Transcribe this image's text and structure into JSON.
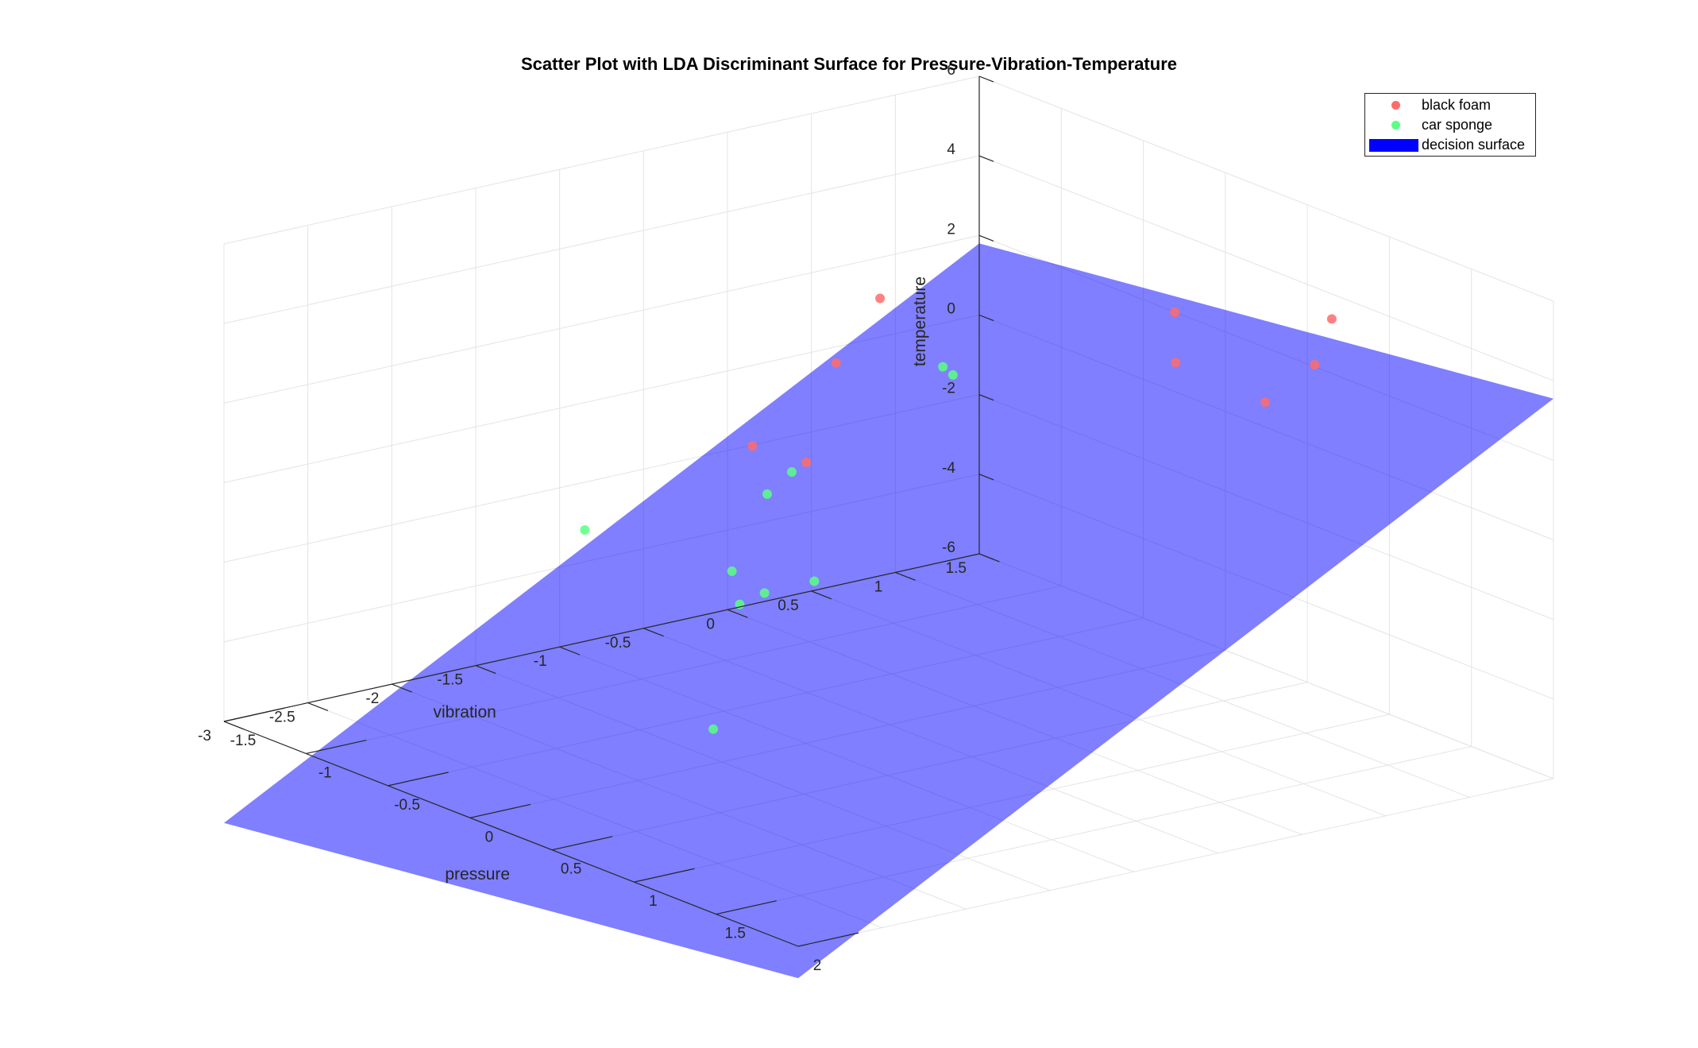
{
  "chart_data": {
    "type": "scatter",
    "title": "Scatter Plot with LDA Discriminant Surface for Pressure-Vibration-Temperature",
    "xlabel": "pressure",
    "ylabel": "vibration",
    "zlabel": "temperature",
    "xlim": [
      -1.5,
      2
    ],
    "ylim": [
      -3,
      1.5
    ],
    "zlim": [
      -6,
      6
    ],
    "xticks": [
      "-1.5",
      "-1",
      "-0.5",
      "0",
      "0.5",
      "1",
      "1.5",
      "2"
    ],
    "yticks": [
      "-3",
      "-2.5",
      "-2",
      "-1.5",
      "-1",
      "-0.5",
      "0",
      "0.5",
      "1",
      "1.5"
    ],
    "zticks": [
      "-6",
      "-4",
      "-2",
      "0",
      "2",
      "4",
      "6"
    ],
    "grid": true,
    "legend_position": "top-right",
    "series": [
      {
        "name": "black foam",
        "color": "#ff6b6b",
        "points": [
          {
            "x": -1.45,
            "y": 0.86,
            "z": 1.1
          },
          {
            "x": -1.38,
            "y": 0.53,
            "z": -0.1
          },
          {
            "x": -1.45,
            "y": 0.1,
            "z": -1.9
          },
          {
            "x": -1.05,
            "y": 0.03,
            "z": -1.6
          },
          {
            "x": 0.05,
            "y": 1.15,
            "z": 2.9
          },
          {
            "x": -0.2,
            "y": 1.4,
            "z": 1.0
          },
          {
            "x": 0.55,
            "y": 1.2,
            "z": 1.4
          },
          {
            "x": 0.7,
            "y": 1.45,
            "z": 3.5
          },
          {
            "x": 0.8,
            "y": 1.25,
            "z": 2.7
          }
        ]
      },
      {
        "name": "car sponge",
        "color": "#5aff83",
        "points": [
          {
            "x": -1.2,
            "y": 1.05,
            "z": -0.6
          },
          {
            "x": -1.5,
            "y": -0.85,
            "z": -3.2
          },
          {
            "x": -0.75,
            "y": 0.55,
            "z": 0.8
          },
          {
            "x": -0.9,
            "y": -0.35,
            "z": -1.8
          },
          {
            "x": -0.75,
            "y": -0.35,
            "z": -1.0
          },
          {
            "x": -0.45,
            "y": -1.0,
            "z": -2.4
          },
          {
            "x": -0.3,
            "y": -1.1,
            "z": -2.9
          },
          {
            "x": -0.2,
            "y": -1.05,
            "z": -2.5
          },
          {
            "x": -0.05,
            "y": -0.9,
            "z": -2.1
          },
          {
            "x": 0.05,
            "y": -1.6,
            "z": -5.0
          }
        ]
      }
    ],
    "surface": {
      "name": "decision surface",
      "color": "#0000ff",
      "opacity": 0.5,
      "plane": {
        "a": 0.5,
        "b": 2.3,
        "c": -0.9
      },
      "x_range": [
        -1.5,
        2
      ],
      "y_range": [
        -3,
        1.5
      ]
    }
  }
}
